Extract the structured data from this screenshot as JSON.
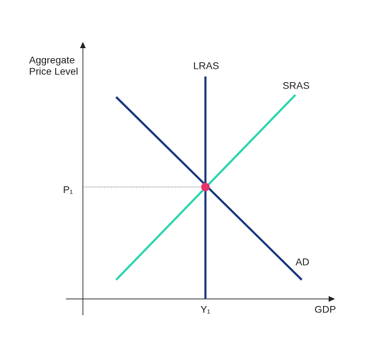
{
  "axis_labels": {
    "y_line1": "Aggregate",
    "y_line2": "Price Level",
    "x": "GDP"
  },
  "curves": {
    "lras": "LRAS",
    "sras": "SRAS",
    "ad": "AD"
  },
  "equilibrium": {
    "price": "P₁",
    "output": "Y₁"
  }
}
